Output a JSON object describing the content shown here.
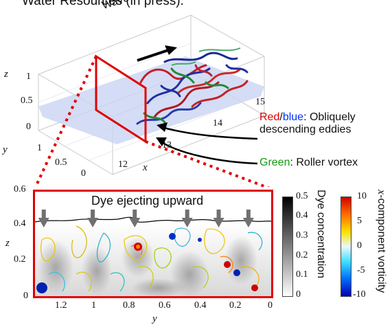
{
  "header_text": "Water Resources (in press).",
  "top_view": {
    "wave_direction_label": "Wave direction",
    "axis_labels": {
      "z": "z",
      "y": "y",
      "x": "x"
    },
    "z_ticks": [
      "1",
      "0.5",
      "0"
    ],
    "y_ticks": [
      "1",
      "0.5",
      "0"
    ],
    "x_ticks": [
      "12",
      "13",
      "14",
      "15"
    ]
  },
  "annotations": {
    "eddies": {
      "red": "Red",
      "slash": "/",
      "blue": "blue",
      "line1_rest": ": Obliquely",
      "line2": "descending eddies"
    },
    "roller": {
      "green": "Green",
      "rest": ": Roller vortex"
    }
  },
  "bottom_plot": {
    "title": "Dye ejecting upward",
    "y_axis_label": "z",
    "x_axis_label": "y",
    "y_ticks": [
      "0.6",
      "0.4",
      "0.2",
      "0"
    ],
    "x_ticks": [
      "1.2",
      "1",
      "0.8",
      "0.6",
      "0.4",
      "0.2",
      "0"
    ],
    "xlim": [
      1.35,
      0
    ],
    "ylim": [
      0,
      0.6
    ],
    "arrow_positions_y": [
      1.3,
      1.02,
      0.78,
      0.48,
      0.3,
      0.13
    ]
  },
  "dye_colorbar": {
    "label": "Dye concentration",
    "ticks": [
      "0.5",
      "0.4",
      "0.3",
      "0.2",
      "0.1",
      "0"
    ],
    "range": [
      0,
      0.5
    ]
  },
  "vorticity_colorbar": {
    "label_prefix": "x",
    "label_rest": "-component vorticity",
    "ticks": [
      "10",
      "5",
      "0",
      "-5",
      "-10"
    ],
    "range": [
      -10,
      10
    ]
  },
  "colors": {
    "frame_red": "#e00000",
    "dotted_red": "#e00000",
    "slice_blue": "#c9d4f2"
  }
}
